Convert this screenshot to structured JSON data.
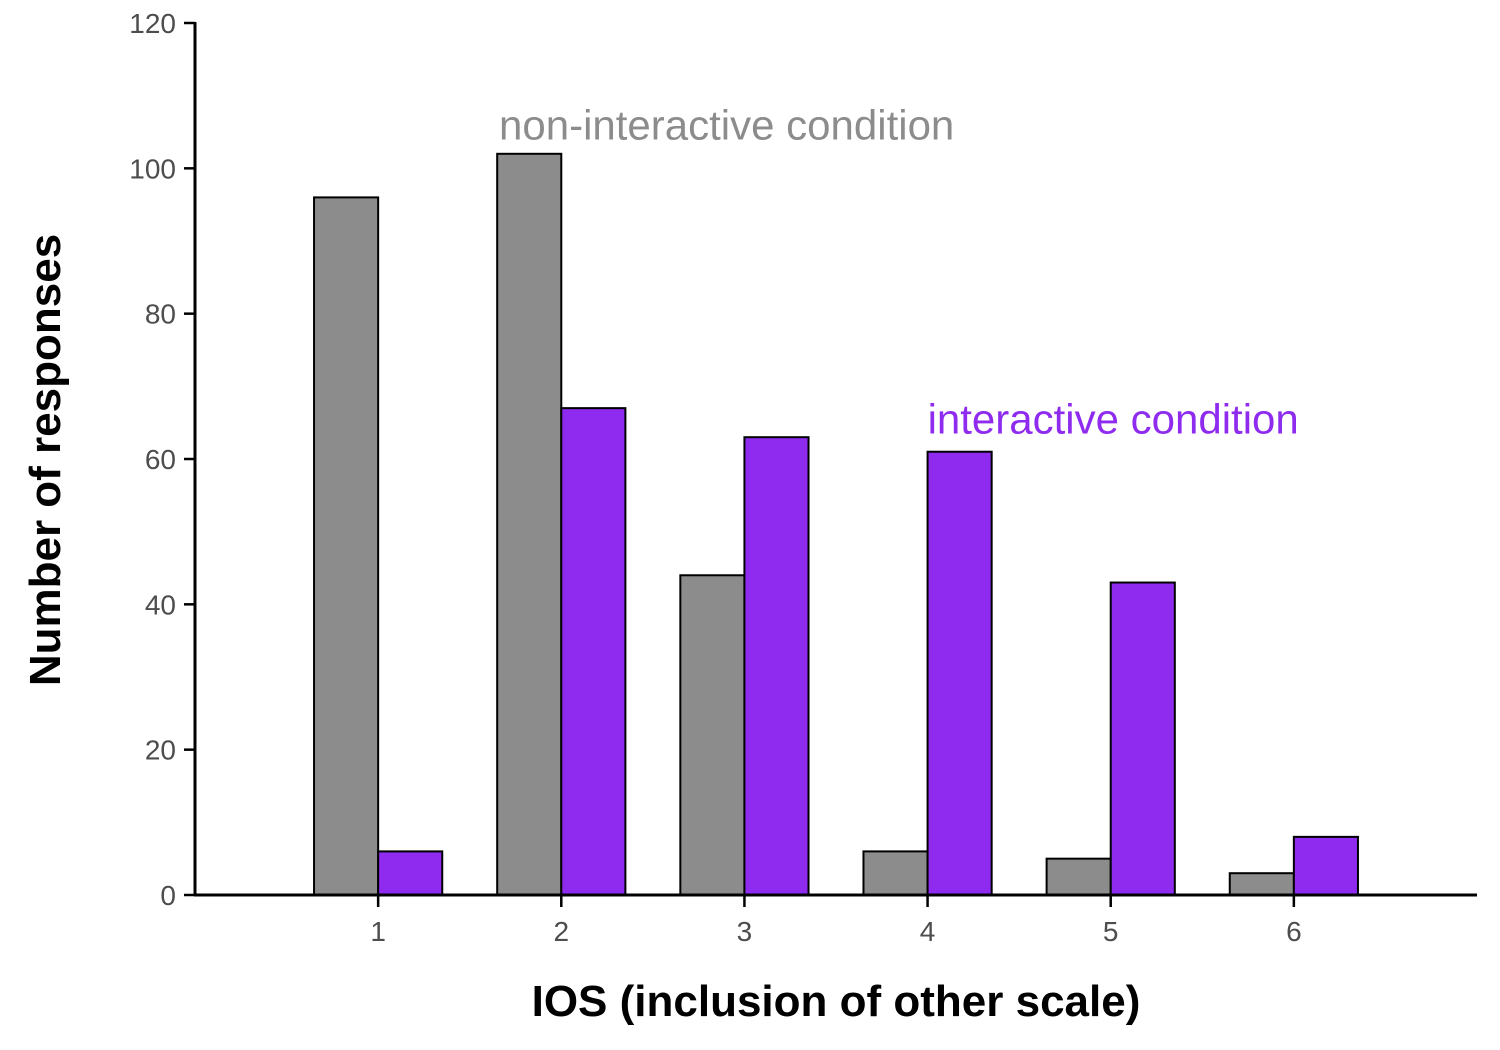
{
  "chart_data": {
    "type": "bar",
    "xlabel": "IOS (inclusion of other scale)",
    "ylabel": "Number of responses",
    "categories": [
      "1",
      "2",
      "3",
      "4",
      "5",
      "6"
    ],
    "x_range": [
      0,
      7
    ],
    "ylim": [
      0,
      120
    ],
    "yticks": [
      "0",
      "20",
      "40",
      "60",
      "80",
      "100",
      "120"
    ],
    "grid": false,
    "legend": "none",
    "series": [
      {
        "name": "non-interactive condition",
        "color": "#8c8c8c",
        "values": [
          96,
          102,
          44,
          6,
          5,
          3
        ]
      },
      {
        "name": "interactive condition",
        "color": "#8e2bef",
        "values": [
          6,
          67,
          63,
          61,
          43,
          8
        ]
      }
    ],
    "annotations": [
      {
        "text": "non-interactive condition",
        "series": 0,
        "x": 1.66,
        "y": 104,
        "color": "#8c8c8c"
      },
      {
        "text": "interactive condition",
        "series": 1,
        "x": 4.0,
        "y": 63.5,
        "color": "#8e2bef"
      }
    ]
  }
}
